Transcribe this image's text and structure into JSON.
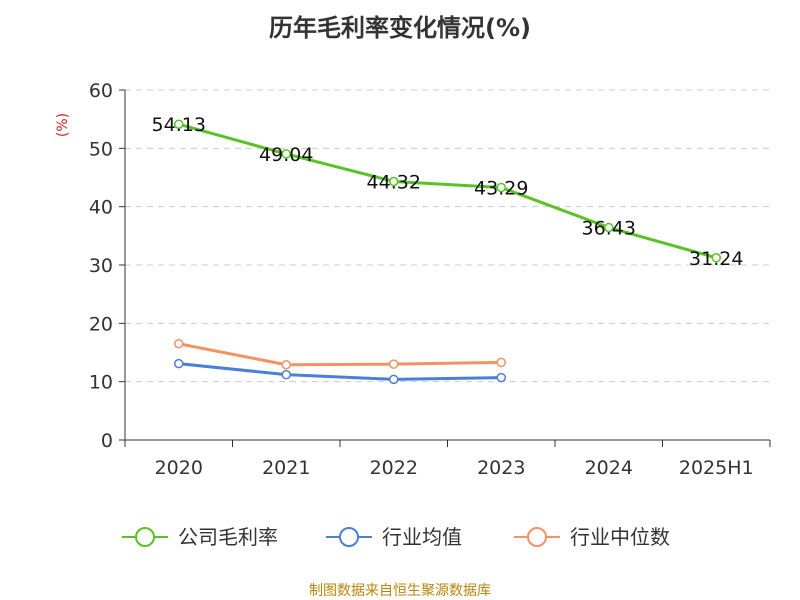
{
  "colors": {
    "gross_margin": "#5ac226",
    "industry_avg": "#4a7fd8",
    "industry_median": "#f39262",
    "grid": "#cccccc",
    "axis": "#333333",
    "unit": "#e02020",
    "source": "#b8860b"
  },
  "chart_data": {
    "type": "line",
    "title": "历年毛利率变化情况(%)",
    "ylabel": "(%)",
    "categories": [
      "2020",
      "2021",
      "2022",
      "2023",
      "2024",
      "2025H1"
    ],
    "ylim": [
      0,
      60
    ],
    "yticks": [
      0,
      10,
      20,
      30,
      40,
      50,
      60
    ],
    "grid": true,
    "legend_position": "bottom",
    "series": [
      {
        "name": "公司毛利率",
        "color_key": "gross_margin",
        "values": [
          54.13,
          49.04,
          44.32,
          43.29,
          36.43,
          31.24
        ],
        "labels": [
          "54.13",
          "49.04",
          "44.32",
          "43.29",
          "36.43",
          "31.24"
        ]
      },
      {
        "name": "行业均值",
        "color_key": "industry_avg",
        "values": [
          13.1,
          11.2,
          10.4,
          10.7,
          null,
          null
        ]
      },
      {
        "name": "行业中位数",
        "color_key": "industry_median",
        "values": [
          16.5,
          12.9,
          13.0,
          13.3,
          null,
          null
        ]
      }
    ]
  },
  "footer": {
    "source": "制图数据来自恒生聚源数据库"
  }
}
